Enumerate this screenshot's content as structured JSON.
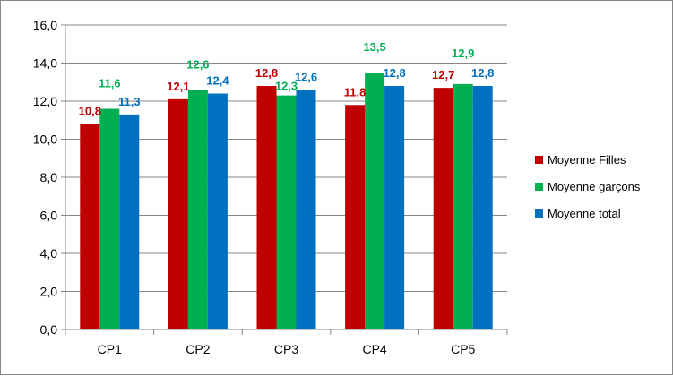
{
  "chart_data": {
    "type": "bar",
    "categories": [
      "CP1",
      "CP2",
      "CP3",
      "CP4",
      "CP5"
    ],
    "series": [
      {
        "name": "Moyenne Filles",
        "color": "#C00000",
        "values": [
          10.8,
          12.1,
          12.8,
          11.8,
          12.7
        ]
      },
      {
        "name": "Moyenne garçons",
        "color": "#00B050",
        "values": [
          11.6,
          12.6,
          12.3,
          13.5,
          12.9
        ]
      },
      {
        "name": "Moyenne total",
        "color": "#0070C0",
        "values": [
          11.3,
          12.4,
          12.6,
          12.8,
          12.8
        ]
      }
    ],
    "ylim": [
      0,
      16
    ],
    "yticks": [
      0,
      2,
      4,
      6,
      8,
      10,
      12,
      14,
      16
    ],
    "tick_format": "decimal-comma-1",
    "grid": true,
    "legend": "right",
    "title": "",
    "xlabel": "",
    "ylabel": ""
  }
}
